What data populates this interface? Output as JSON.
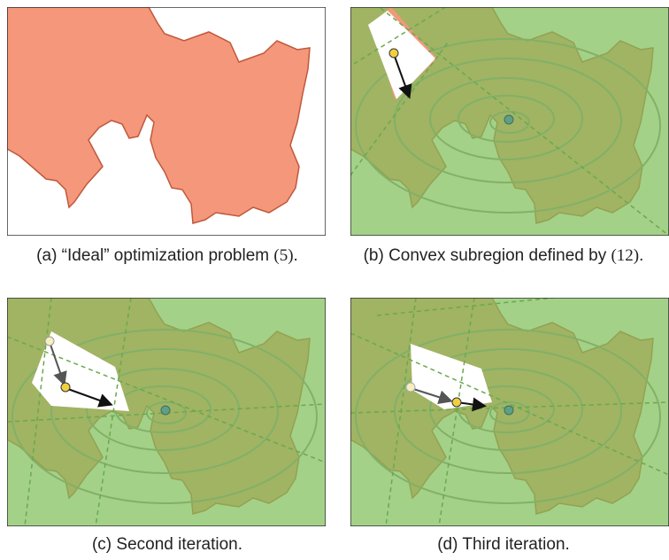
{
  "panels": [
    {
      "id": "a",
      "caption_text": "(a) “Ideal” optimization problem ",
      "caption_ref": "(5)",
      "caption_end": "."
    },
    {
      "id": "b",
      "caption_text": "(b) Convex subregion defined by ",
      "caption_ref": "(12)",
      "caption_end": "."
    },
    {
      "id": "c",
      "caption_text": "(c) Second iteration.",
      "caption_ref": "",
      "caption_end": ""
    },
    {
      "id": "d",
      "caption_text": "(d) Third iteration.",
      "caption_ref": "",
      "caption_end": ""
    }
  ],
  "colors": {
    "infeasible": "#f4977a",
    "obstacle_edge": "#c0583c",
    "contour": "#8a8a8a",
    "green_overlay": "#7fbf5a",
    "goal_point": "#4a7fb8",
    "iterate_point": "#f0d040",
    "arrow": "#111111"
  },
  "icons": [
    "goal-point",
    "iterate-point",
    "step-arrow"
  ]
}
